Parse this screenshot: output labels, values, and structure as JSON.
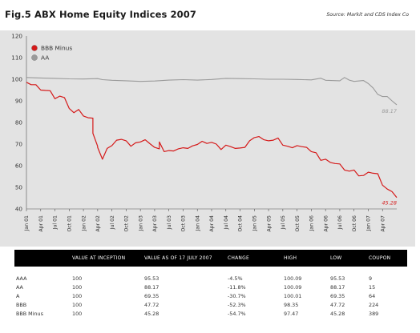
{
  "header": {
    "title": "Fig.5  ABX Home Equity Indices 2007",
    "source": "Source: Markit and CDS Index Co"
  },
  "colors": {
    "bbb_minus": "#d51a1a",
    "aa": "#9a9a9a",
    "panel": "#e3e3e3"
  },
  "chart_data": {
    "type": "line",
    "title": "ABX Home Equity Indices 2007",
    "xlabel": "",
    "ylabel": "",
    "ylim": [
      40,
      120
    ],
    "yticks": [
      40,
      50,
      60,
      70,
      80,
      90,
      100,
      110,
      120
    ],
    "grid": false,
    "legend_position": "top-left",
    "x_tick_labels": [
      "Jan 01",
      "Apr 01",
      "Jul 01",
      "Oct 01",
      "Jan 02",
      "Apr 02",
      "Jul 02",
      "Oct 02",
      "Jan 03",
      "Apr 03",
      "Jul 03",
      "Oct 03",
      "Jan 04",
      "Apr 04",
      "Jul 04",
      "Oct 04",
      "Jan 05",
      "Apr 05",
      "Jul 05",
      "Oct 05",
      "Jan 06",
      "Apr 06",
      "Jul 06",
      "Oct 06",
      "Jan 07",
      "Apr 07"
    ],
    "x_range": [
      "Jan 01",
      "Jul 07"
    ],
    "series": [
      {
        "name": "BBB Minus",
        "color": "#d51a1a",
        "end_label": "45.28",
        "points": [
          [
            "Jan 01",
            98.6
          ],
          [
            "Feb 01",
            97.5
          ],
          [
            "Mar 01",
            97.5
          ],
          [
            "Apr 01",
            95.0
          ],
          [
            "May 01",
            94.8
          ],
          [
            "Jun 01",
            94.7
          ],
          [
            "Jul 01",
            91.0
          ],
          [
            "Aug 01",
            92.2
          ],
          [
            "Sep 01",
            91.5
          ],
          [
            "Oct 01",
            86.5
          ],
          [
            "Nov 01",
            84.5
          ],
          [
            "Dec 01",
            86.0
          ],
          [
            "Jan 02",
            83.0
          ],
          [
            "Feb 02",
            82.2
          ],
          [
            "Mar 02",
            82.0
          ],
          [
            "Mar 02",
            75.0
          ],
          [
            "Apr 02",
            69.0
          ],
          [
            "Apr 02",
            68.5
          ],
          [
            "May 02",
            63.0
          ],
          [
            "Jun 02",
            68.0
          ],
          [
            "Jul 02",
            69.3
          ],
          [
            "Aug 02",
            71.8
          ],
          [
            "Sep 02",
            72.2
          ],
          [
            "Oct 02",
            71.5
          ],
          [
            "Nov 02",
            69.0
          ],
          [
            "Dec 02",
            70.6
          ],
          [
            "Jan 03",
            71.0
          ],
          [
            "Feb 03",
            72.0
          ],
          [
            "Mar 03",
            70.2
          ],
          [
            "Apr 03",
            68.5
          ],
          [
            "May 03",
            67.8
          ],
          [
            "May 03",
            71.0
          ],
          [
            "Jun 03",
            66.5
          ],
          [
            "Jul 03",
            67.0
          ],
          [
            "Aug 03",
            66.8
          ],
          [
            "Sep 03",
            67.8
          ],
          [
            "Oct 03",
            68.3
          ],
          [
            "Nov 03",
            68.0
          ],
          [
            "Dec 03",
            69.2
          ],
          [
            "Jan 04",
            69.8
          ],
          [
            "Feb 04",
            71.3
          ],
          [
            "Mar 04",
            70.3
          ],
          [
            "Apr 04",
            70.8
          ],
          [
            "May 04",
            70.0
          ],
          [
            "Jun 04",
            67.5
          ],
          [
            "Jul 04",
            69.5
          ],
          [
            "Aug 04",
            68.8
          ],
          [
            "Sep 04",
            68.0
          ],
          [
            "Oct 04",
            68.2
          ],
          [
            "Nov 04",
            68.5
          ],
          [
            "Dec 04",
            71.5
          ],
          [
            "Jan 05",
            73.0
          ],
          [
            "Feb 05",
            73.5
          ],
          [
            "Mar 05",
            72.0
          ],
          [
            "Apr 05",
            71.5
          ],
          [
            "May 05",
            71.8
          ],
          [
            "Jun 05",
            72.8
          ],
          [
            "Jul 05",
            69.5
          ],
          [
            "Aug 05",
            69.0
          ],
          [
            "Sep 05",
            68.3
          ],
          [
            "Oct 05",
            69.3
          ],
          [
            "Nov 05",
            68.8
          ],
          [
            "Dec 05",
            68.5
          ],
          [
            "Jan 06",
            66.5
          ],
          [
            "Feb 06",
            66.0
          ],
          [
            "Mar 06",
            62.5
          ],
          [
            "Apr 06",
            63.0
          ],
          [
            "May 06",
            61.5
          ],
          [
            "Jun 06",
            61.0
          ],
          [
            "Jul 06",
            60.8
          ],
          [
            "Aug 06",
            58.0
          ],
          [
            "Sep 06",
            57.5
          ],
          [
            "Oct 06",
            58.0
          ],
          [
            "Nov 06",
            55.3
          ],
          [
            "Dec 06",
            55.5
          ],
          [
            "Jan 07",
            57.0
          ],
          [
            "Feb 07",
            56.5
          ],
          [
            "Mar 07",
            56.3
          ],
          [
            "Apr 07",
            51.0
          ],
          [
            "May 07",
            49.2
          ],
          [
            "Jun 07",
            48.0
          ],
          [
            "Jul 07",
            45.28
          ]
        ]
      },
      {
        "name": "AA",
        "color": "#9a9a9a",
        "end_label": "88.17",
        "points": [
          [
            "Jan 01",
            100.8
          ],
          [
            "Apr 01",
            100.6
          ],
          [
            "Jul 01",
            100.4
          ],
          [
            "Oct 01",
            100.2
          ],
          [
            "Jan 02",
            100.1
          ],
          [
            "Apr 02",
            100.3
          ],
          [
            "May 02",
            99.8
          ],
          [
            "Jul 02",
            99.5
          ],
          [
            "Oct 02",
            99.3
          ],
          [
            "Jan 03",
            99.0
          ],
          [
            "Apr 03",
            99.2
          ],
          [
            "Jul 03",
            99.6
          ],
          [
            "Oct 03",
            99.8
          ],
          [
            "Jan 04",
            99.6
          ],
          [
            "Apr 04",
            99.9
          ],
          [
            "Jul 04",
            100.4
          ],
          [
            "Oct 04",
            100.3
          ],
          [
            "Jan 05",
            100.2
          ],
          [
            "Apr 05",
            100.0
          ],
          [
            "Jul 05",
            100.0
          ],
          [
            "Oct 05",
            99.9
          ],
          [
            "Jan 06",
            99.7
          ],
          [
            "Mar 06",
            100.5
          ],
          [
            "Apr 06",
            99.5
          ],
          [
            "Jul 06",
            99.3
          ],
          [
            "Aug 06",
            100.8
          ],
          [
            "Sep 06",
            99.6
          ],
          [
            "Oct 06",
            99.0
          ],
          [
            "Dec 06",
            99.4
          ],
          [
            "Jan 07",
            98.0
          ],
          [
            "Feb 07",
            96.0
          ],
          [
            "Mar 07",
            93.0
          ],
          [
            "Apr 07",
            92.0
          ],
          [
            "May 07",
            92.0
          ],
          [
            "Jun 07",
            90.0
          ],
          [
            "Jul 07",
            88.17
          ]
        ]
      }
    ]
  },
  "table": {
    "headers": [
      "",
      "VALUE AT INCEPTION",
      "VALUE AS OF 17 JULY 2007",
      "CHANGE",
      "HIGH",
      "LOW",
      "COUPON"
    ],
    "rows": [
      [
        "AAA",
        "100",
        "95.53",
        "-4.5%",
        "100.09",
        "95.53",
        "9"
      ],
      [
        "AA",
        "100",
        "88.17",
        "-11.8%",
        "100.09",
        "88.17",
        "15"
      ],
      [
        "A",
        "100",
        "69.35",
        "-30.7%",
        "100.01",
        "69.35",
        "64"
      ],
      [
        "BBB",
        "100",
        "47.72",
        "-52.3%",
        "98.35",
        "47.72",
        "224"
      ],
      [
        "BBB Minus",
        "100",
        "45.28",
        "-54.7%",
        "97.47",
        "45.28",
        "389"
      ]
    ]
  }
}
